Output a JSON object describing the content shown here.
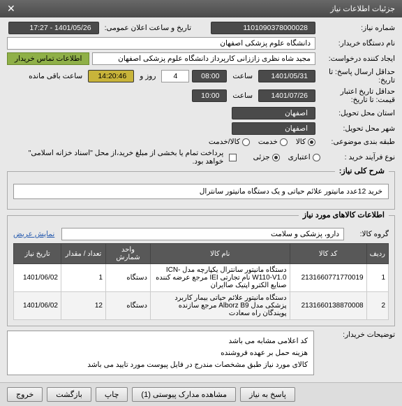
{
  "titlebar": {
    "title": "جزئیات اطلاعات نیاز",
    "close": "✕"
  },
  "fields": {
    "need_no_label": "شماره نیاز:",
    "need_no": "1101090378000028",
    "public_date_label": "تاریخ و ساعت اعلان عمومی:",
    "public_date": "1401/05/26 - 17:27",
    "buyer_org_label": "نام دستگاه خریدار:",
    "buyer_org": "دانشگاه علوم پزشکی اصفهان",
    "requester_label": "ایجاد کننده درخواست:",
    "requester": "مجید شاه نظری زاززانی کارپرداز دانشگاه علوم پزشکی اصفهان",
    "contact_btn": "اطلاعات تماس خریدار",
    "deadline_label": "حداقل ارسال پاسخ: تا تاریخ:",
    "deadline_date": "1401/05/31",
    "time_label": "ساعت",
    "deadline_time": "08:00",
    "days": "4",
    "days_label": "روز و",
    "countdown": "14:20:46",
    "countdown_label": "ساعت باقی مانده",
    "validity_label": "حداقل تاریخ اعتبار قیمت: تا تاریخ:",
    "validity_date": "1401/07/26",
    "validity_time": "10:00",
    "province_label": "استان محل تحویل:",
    "province": "اصفهان",
    "city_label": "شهر محل تحویل:",
    "city": "اصفهان",
    "category_label": "طبقه بندی موضوعی:",
    "cat_goods": "کالا",
    "cat_service": "خدمت",
    "cat_both": "کالا/خدمت",
    "process_label": "نوع فرآیند خرید :",
    "proc_credit": "اعتباری",
    "proc_partial": "جزئی",
    "treasury_label": "پرداخت تمام یا بخشی از مبلغ خرید،از محل \"اسناد خزانه اسلامی\" خواهد بود."
  },
  "desc": {
    "legend": "شرح کلی نیاز:",
    "text": "خرید 12عدد مانیتور علائم حیاتی و یک دستگاه مانیتور سانترال"
  },
  "items_section": {
    "legend": "اطلاعات کالاهای مورد نیاز",
    "group_label": "گروه کالا:",
    "group_value": "دارو، پزشکی و سلامت",
    "wide_label": "نمایش عریض"
  },
  "table": {
    "headers": [
      "ردیف",
      "کد کالا",
      "نام کالا",
      "واحد شمارش",
      "تعداد / مقدار",
      "تاریخ نیاز"
    ],
    "rows": [
      [
        "1",
        "2131660771770019",
        "دستگاه مانیتور سانترال یکپارچه مدل ICN-W110-V1.0 نام تجارتی IEI مرجع عرضه کننده صنایع الکترو اپتیک صاایران",
        "دستگاه",
        "1",
        "1401/06/02"
      ],
      [
        "2",
        "2131660138870008",
        "دستگاه مانیتور علائم حیاتی بیمار کاربرد پزشکی مدل Alborz B9 مرجع سازنده پویندگان راه سعادت",
        "دستگاه",
        "12",
        "1401/06/02"
      ]
    ],
    "col_widths": [
      "30px",
      "110px",
      "auto",
      "64px",
      "64px",
      "68px"
    ]
  },
  "notes": {
    "label": "توضیحات خریدار:",
    "lines": [
      "کد اعلامی مشابه می باشد",
      "هزینه حمل بر عهده فروشنده",
      "کالای مورد نیاز طبق مشخصات مندرج در فایل پیوست مورد تایید می باشد"
    ]
  },
  "footer": {
    "exit": "خروج",
    "back": "بازگشت",
    "print": "چاپ",
    "attach": "مشاهده مدارک پیوستی (1)",
    "reply": "پاسخ به نیاز"
  }
}
